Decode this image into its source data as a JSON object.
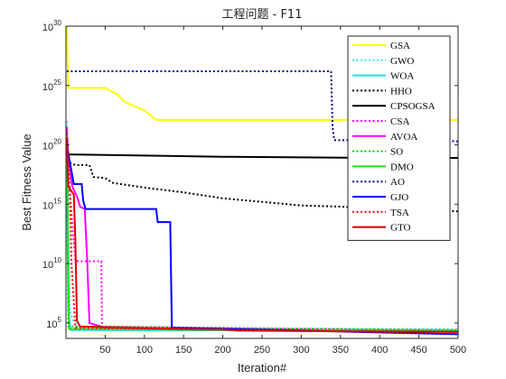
{
  "chart_data": {
    "type": "line",
    "title": "工程问题 - F11",
    "xlabel": "Iteration#",
    "ylabel": "Best Fitness Value",
    "xlim": [
      0,
      500
    ],
    "ylim_log10": [
      3.7,
      30
    ],
    "y_scale": "log",
    "x_ticks": [
      50,
      100,
      150,
      200,
      250,
      300,
      350,
      400,
      450,
      500
    ],
    "y_ticks": [
      {
        "base": "10",
        "exp": "5",
        "log10": 5
      },
      {
        "base": "10",
        "exp": "10",
        "log10": 10
      },
      {
        "base": "10",
        "exp": "15",
        "log10": 15
      },
      {
        "base": "10",
        "exp": "20",
        "log10": 20
      },
      {
        "base": "10",
        "exp": "25",
        "log10": 25
      },
      {
        "base": "10",
        "exp": "30",
        "log10": 30
      }
    ],
    "grid": false,
    "legend_position": "top-right",
    "series": [
      {
        "name": "GSA",
        "color": "#ffff00",
        "dash": "solid",
        "width": 2,
        "points": [
          [
            1,
            30
          ],
          [
            2,
            27.5
          ],
          [
            3,
            24.8
          ],
          [
            50,
            24.8
          ],
          [
            55,
            24.6
          ],
          [
            65,
            24.3
          ],
          [
            75,
            23.6
          ],
          [
            90,
            23.2
          ],
          [
            100,
            22.9
          ],
          [
            115,
            22.1
          ],
          [
            500,
            22.1
          ]
        ]
      },
      {
        "name": "GWO",
        "color": "#40e0e8",
        "dash": "dot",
        "width": 2,
        "points": [
          [
            1,
            22
          ],
          [
            3,
            13
          ],
          [
            5,
            6
          ],
          [
            10,
            5.1
          ],
          [
            20,
            4.6
          ],
          [
            25,
            4.5
          ],
          [
            500,
            4.5
          ]
        ]
      },
      {
        "name": "WOA",
        "color": "#20e0e0",
        "dash": "solid",
        "width": 2,
        "points": [
          [
            1,
            19
          ],
          [
            3,
            6
          ],
          [
            6,
            4.4
          ],
          [
            500,
            4.35
          ]
        ]
      },
      {
        "name": "HHO",
        "color": "#000000",
        "dash": "dot",
        "width": 2,
        "points": [
          [
            1,
            19.5
          ],
          [
            5,
            18.5
          ],
          [
            12,
            18.3
          ],
          [
            30,
            18.3
          ],
          [
            35,
            17.3
          ],
          [
            50,
            17.2
          ],
          [
            60,
            16.8
          ],
          [
            100,
            16.4
          ],
          [
            150,
            16.0
          ],
          [
            200,
            15.5
          ],
          [
            250,
            15.2
          ],
          [
            300,
            14.9
          ],
          [
            350,
            14.8
          ],
          [
            400,
            14.6
          ],
          [
            450,
            14.5
          ],
          [
            500,
            14.4
          ]
        ]
      },
      {
        "name": "CPSOGSA",
        "color": "#000000",
        "dash": "solid",
        "width": 2,
        "points": [
          [
            1,
            19.2
          ],
          [
            100,
            19.1
          ],
          [
            200,
            19.0
          ],
          [
            300,
            18.95
          ],
          [
            400,
            18.9
          ],
          [
            500,
            18.9
          ]
        ]
      },
      {
        "name": "CSA",
        "color": "#ff00ff",
        "dash": "dot",
        "width": 2,
        "points": [
          [
            1,
            21
          ],
          [
            4,
            17
          ],
          [
            8,
            13.5
          ],
          [
            12,
            10.2
          ],
          [
            45,
            10.2
          ],
          [
            46,
            4.7
          ],
          [
            500,
            4.3
          ]
        ]
      },
      {
        "name": "AVOA",
        "color": "#ff00ff",
        "dash": "solid",
        "width": 2,
        "points": [
          [
            1,
            21.5
          ],
          [
            3,
            19
          ],
          [
            8,
            16.5
          ],
          [
            15,
            15.5
          ],
          [
            18,
            14.8
          ],
          [
            24,
            14.6
          ],
          [
            27,
            10.5
          ],
          [
            30,
            5.0
          ],
          [
            50,
            4.6
          ],
          [
            500,
            4.25
          ]
        ]
      },
      {
        "name": "SO",
        "color": "#00d000",
        "dash": "dot",
        "width": 2,
        "points": [
          [
            1,
            20.5
          ],
          [
            2,
            12
          ],
          [
            3,
            4.7
          ],
          [
            500,
            4.4
          ]
        ]
      },
      {
        "name": "DMO",
        "color": "#20e020",
        "dash": "solid",
        "width": 2,
        "points": [
          [
            1,
            20.8
          ],
          [
            2,
            17
          ],
          [
            3,
            9
          ],
          [
            4,
            4.5
          ],
          [
            500,
            4.3
          ]
        ]
      },
      {
        "name": "AO",
        "color": "#000090",
        "dash": "dot",
        "width": 2,
        "points": [
          [
            1,
            26.2
          ],
          [
            338,
            26.2
          ],
          [
            340,
            21.5
          ],
          [
            342,
            20.4
          ],
          [
            500,
            20.3
          ]
        ]
      },
      {
        "name": "GJO",
        "color": "#0000ff",
        "dash": "solid",
        "width": 2,
        "points": [
          [
            1,
            20
          ],
          [
            10,
            16.7
          ],
          [
            20,
            16.7
          ],
          [
            22,
            15.3
          ],
          [
            25,
            14.6
          ],
          [
            115,
            14.6
          ],
          [
            117,
            13.5
          ],
          [
            133,
            13.5
          ],
          [
            135,
            4.6
          ],
          [
            500,
            4.05
          ]
        ]
      },
      {
        "name": "TSA",
        "color": "#ff0000",
        "dash": "dot",
        "width": 2,
        "points": [
          [
            1,
            21
          ],
          [
            5,
            16
          ],
          [
            7,
            10
          ],
          [
            12,
            4.6
          ],
          [
            500,
            4.15
          ]
        ]
      },
      {
        "name": "GTO",
        "color": "#dd0000",
        "dash": "solid",
        "width": 2,
        "points": [
          [
            1,
            20.5
          ],
          [
            3,
            16.5
          ],
          [
            10,
            15.8
          ],
          [
            12,
            12
          ],
          [
            14,
            5.2
          ],
          [
            18,
            4.7
          ],
          [
            100,
            4.55
          ],
          [
            200,
            4.45
          ],
          [
            220,
            4.35
          ],
          [
            500,
            4.25
          ]
        ]
      }
    ]
  }
}
